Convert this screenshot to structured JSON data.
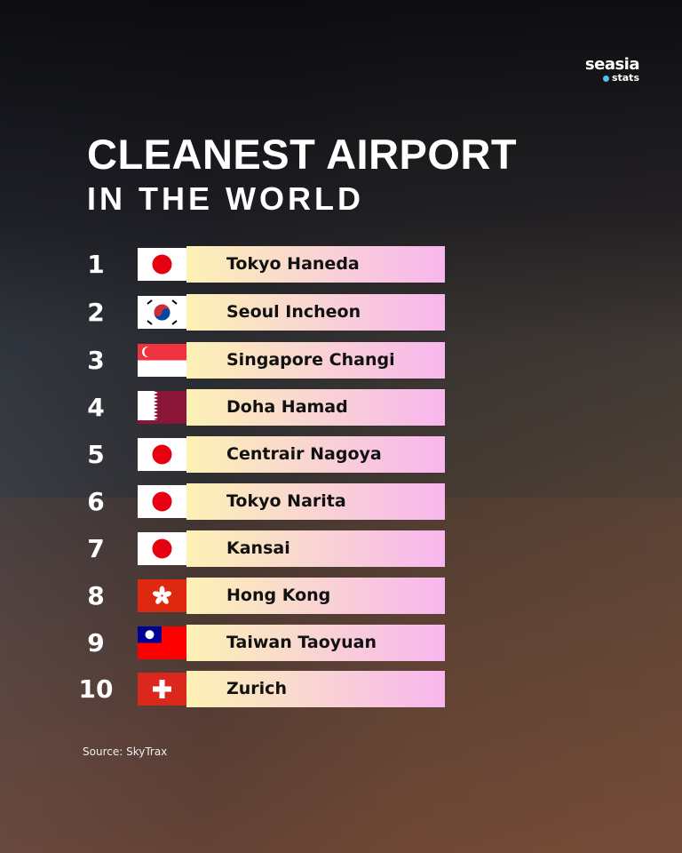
{
  "logo": {
    "main": "seasia",
    "sub": "stats"
  },
  "title": "CLEANEST AIRPORT",
  "subtitle": "IN THE WORLD",
  "rankings": [
    {
      "rank": "1",
      "name": "Tokyo Haneda",
      "flag": "japan"
    },
    {
      "rank": "2",
      "name": "Seoul Incheon",
      "flag": "south-korea"
    },
    {
      "rank": "3",
      "name": "Singapore Changi",
      "flag": "singapore"
    },
    {
      "rank": "4",
      "name": "Doha Hamad",
      "flag": "qatar"
    },
    {
      "rank": "5",
      "name": "Centrair Nagoya",
      "flag": "japan"
    },
    {
      "rank": "6",
      "name": "Tokyo Narita",
      "flag": "japan"
    },
    {
      "rank": "7",
      "name": "Kansai",
      "flag": "japan"
    },
    {
      "rank": "8",
      "name": "Hong Kong",
      "flag": "hong-kong"
    },
    {
      "rank": "9",
      "name": "Taiwan Taoyuan",
      "flag": "taiwan"
    },
    {
      "rank": "10",
      "name": "Zurich",
      "flag": "switzerland"
    }
  ],
  "source": "Source: SkyTrax"
}
